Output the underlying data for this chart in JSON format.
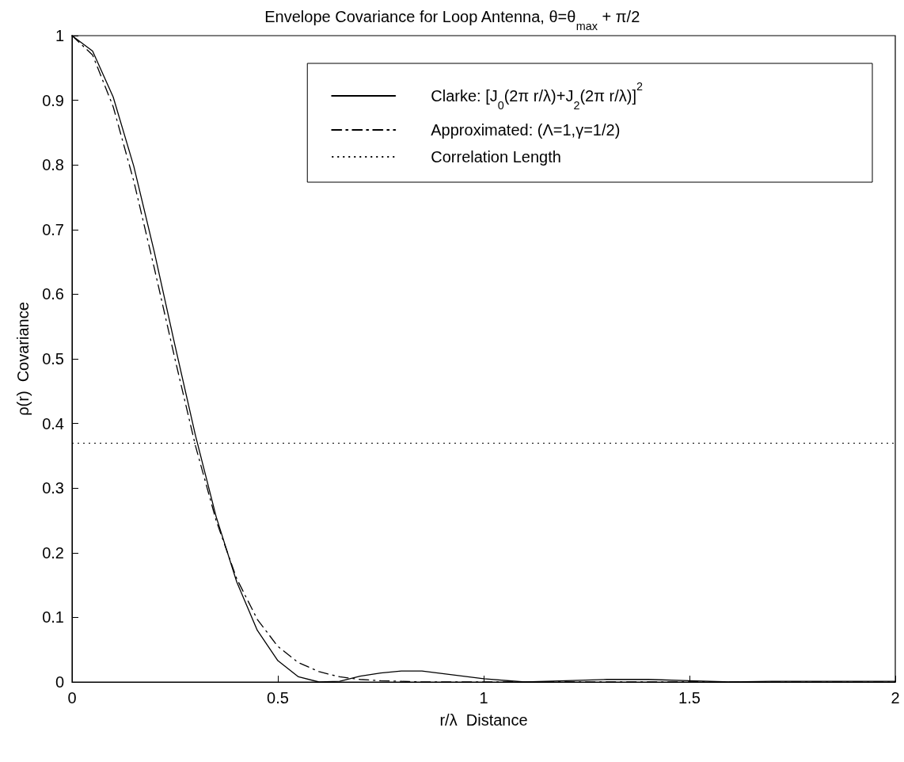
{
  "chart_data": {
    "type": "line",
    "title": "Envelope Covariance for Loop Antenna, θ=θ$_{max}$ + π/2",
    "xlabel": "r/λ  Distance",
    "ylabel": "ρ(r)  Covariance",
    "x": [
      0,
      0.05,
      0.1,
      0.15,
      0.2,
      0.25,
      0.3,
      0.35,
      0.4,
      0.45,
      0.5,
      0.55,
      0.6,
      0.65,
      0.7,
      0.75,
      0.8,
      0.85,
      0.9,
      1.0,
      1.1,
      1.2,
      1.3,
      1.4,
      1.5,
      1.6,
      1.7,
      1.8,
      1.9,
      2.0
    ],
    "series": [
      {
        "name": "Clarke: [J$_{0}$(2π r/λ)+J$_{2}$(2π r/λ)]$^{2}$",
        "color": "#000000",
        "line_style": "solid",
        "values": [
          1,
          0.976,
          0.905,
          0.798,
          0.665,
          0.521,
          0.381,
          0.256,
          0.155,
          0.08,
          0.033,
          0.008,
          0.0,
          0.001,
          0.009,
          0.014,
          0.017,
          0.017,
          0.013,
          0.005,
          0.0,
          0.002,
          0.004,
          0.004,
          0.002,
          0.0,
          0.001,
          0.001,
          0.001,
          0.001
        ]
      },
      {
        "name": "Approximated: (Λ=1,γ=1/2)",
        "color": "#000000",
        "line_style": "dashed",
        "values": [
          1,
          0.97,
          0.89,
          0.775,
          0.64,
          0.5,
          0.365,
          0.25,
          0.16,
          0.097,
          0.055,
          0.03,
          0.016,
          0.008,
          0.004,
          0.002,
          0.001,
          0,
          0,
          0,
          0,
          0,
          0,
          0,
          0,
          0,
          0,
          0,
          0,
          0
        ]
      }
    ],
    "ref_lines": [
      {
        "axis": "y",
        "value": 0.37,
        "label": "Correlation Length",
        "color": "#000000",
        "line_style": "dotted"
      }
    ],
    "xlim": [
      0,
      2
    ],
    "xticks": [
      0,
      0.5,
      1,
      1.5,
      2
    ],
    "ylim": [
      0,
      1
    ],
    "yticks": [
      0,
      0.1,
      0.2,
      0.3,
      0.4,
      0.5,
      0.6,
      0.7,
      0.8,
      0.9,
      1
    ],
    "grid": false,
    "legend": "top right",
    "marker": "none"
  }
}
